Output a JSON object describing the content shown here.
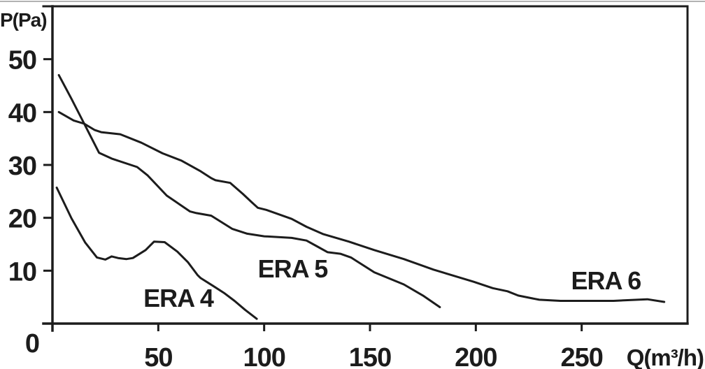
{
  "chart_data": {
    "type": "line",
    "title": "",
    "xlabel": "Q(m³/h)",
    "ylabel": "P(Pa)",
    "xlim": [
      0,
      300
    ],
    "ylim": [
      0,
      60
    ],
    "x_ticks": [
      50,
      100,
      150,
      200,
      250
    ],
    "y_ticks": [
      10,
      20,
      30,
      40,
      50
    ],
    "origin_label": "0",
    "grid": false,
    "legend_position": "none",
    "line_color": "#1c1c1c",
    "axis_color": "#1c1c1c",
    "topline_color": "#999999",
    "background_color": "#ffffff",
    "series": [
      {
        "name": "ERA 4",
        "points": [
          [
            2,
            25.7
          ],
          [
            9,
            19.9
          ],
          [
            15.5,
            15.3
          ],
          [
            21,
            12.5
          ],
          [
            25,
            12.1
          ],
          [
            28,
            12.7
          ],
          [
            31,
            12.4
          ],
          [
            35,
            12.2
          ],
          [
            38,
            12.4
          ],
          [
            44,
            13.9
          ],
          [
            48,
            15.5
          ],
          [
            53,
            15.4
          ],
          [
            59,
            13.6
          ],
          [
            64,
            11.6
          ],
          [
            68.5,
            9.2
          ],
          [
            70,
            8.6
          ],
          [
            76,
            7.1
          ],
          [
            81,
            5.8
          ],
          [
            86,
            4.3
          ],
          [
            91,
            2.6
          ],
          [
            96.5,
            0.9
          ]
        ]
      },
      {
        "name": "ERA 5",
        "points": [
          [
            3,
            47
          ],
          [
            9,
            42.5
          ],
          [
            15,
            37.8
          ],
          [
            22,
            32.3
          ],
          [
            28,
            31.2
          ],
          [
            40,
            29.6
          ],
          [
            45,
            28
          ],
          [
            54,
            24.2
          ],
          [
            65,
            21.2
          ],
          [
            68,
            20.9
          ],
          [
            75,
            20.4
          ],
          [
            85,
            17.9
          ],
          [
            92,
            17
          ],
          [
            100,
            16.5
          ],
          [
            113,
            16.2
          ],
          [
            120,
            15.7
          ],
          [
            125,
            14.6
          ],
          [
            130,
            13.5
          ],
          [
            136,
            13.2
          ],
          [
            141,
            12.5
          ],
          [
            152,
            9.7
          ],
          [
            166,
            7.4
          ],
          [
            175,
            5.3
          ],
          [
            183,
            3.1
          ]
        ]
      },
      {
        "name": "ERA 6",
        "points": [
          [
            3,
            40
          ],
          [
            10,
            38.4
          ],
          [
            15,
            37.8
          ],
          [
            20,
            36.6
          ],
          [
            23,
            36.2
          ],
          [
            32,
            35.8
          ],
          [
            42,
            34.2
          ],
          [
            52,
            32.2
          ],
          [
            61,
            30.8
          ],
          [
            70,
            28.8
          ],
          [
            75,
            27.5
          ],
          [
            77,
            27.1
          ],
          [
            84,
            26.6
          ],
          [
            90,
            24.5
          ],
          [
            94,
            23
          ],
          [
            97,
            21.9
          ],
          [
            101,
            21.5
          ],
          [
            113,
            19.8
          ],
          [
            120,
            18.3
          ],
          [
            128,
            16.9
          ],
          [
            140,
            15.5
          ],
          [
            152,
            13.9
          ],
          [
            166,
            12.2
          ],
          [
            180,
            10.2
          ],
          [
            199,
            7.9
          ],
          [
            208,
            6.7
          ],
          [
            215,
            6.1
          ],
          [
            220,
            5.3
          ],
          [
            230,
            4.5
          ],
          [
            240,
            4.3
          ],
          [
            265,
            4.3
          ],
          [
            281,
            4.6
          ],
          [
            289,
            4.1
          ]
        ]
      }
    ],
    "annotations": [
      {
        "text": "ERA 4",
        "x": 43,
        "y": 3.2
      },
      {
        "text": "ERA 5",
        "x": 97,
        "y": 8.7
      },
      {
        "text": "ERA 6",
        "x": 245,
        "y": 6.5
      }
    ]
  }
}
